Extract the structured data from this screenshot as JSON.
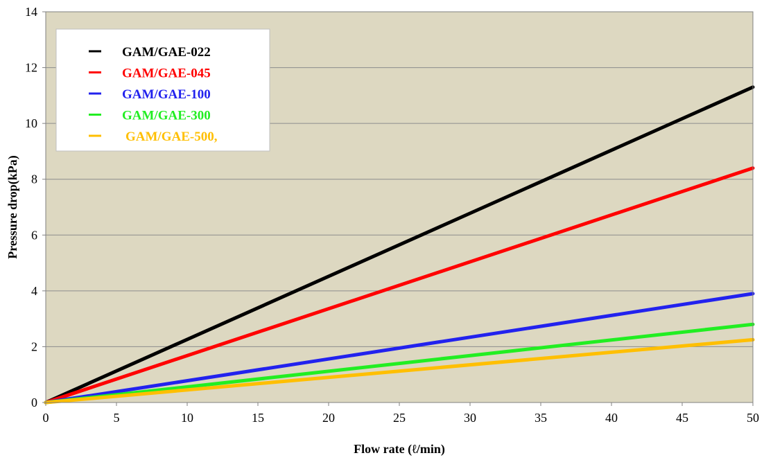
{
  "chart_data": {
    "type": "line",
    "xlabel": "Flow rate (ℓ/min)",
    "ylabel": "Pressure drop(kPa)",
    "xlim": [
      0,
      50
    ],
    "ylim": [
      0,
      14
    ],
    "xticks": [
      0,
      5,
      10,
      15,
      20,
      25,
      30,
      35,
      40,
      45,
      50
    ],
    "yticks": [
      0,
      2,
      4,
      6,
      8,
      10,
      12,
      14
    ],
    "grid": "horizontal",
    "legend_position": "top-left",
    "plot_background": "#ddd8c1",
    "series": [
      {
        "name": "GAM/GAE-022",
        "color": "#000000",
        "x": [
          0,
          50
        ],
        "y": [
          0,
          11.3
        ]
      },
      {
        "name": "GAM/GAE-045",
        "color": "#ff0000",
        "x": [
          0,
          50
        ],
        "y": [
          0,
          8.4
        ]
      },
      {
        "name": "GAM/GAE-100",
        "color": "#2222ee",
        "x": [
          0,
          50
        ],
        "y": [
          0,
          3.9
        ]
      },
      {
        "name": "GAM/GAE-300",
        "color": "#22ee22",
        "x": [
          0,
          50
        ],
        "y": [
          0,
          2.8
        ]
      },
      {
        "name": "GAM/GAE-500,",
        "color": "#ffbf00",
        "x": [
          0,
          50
        ],
        "y": [
          0,
          2.25
        ]
      }
    ]
  }
}
